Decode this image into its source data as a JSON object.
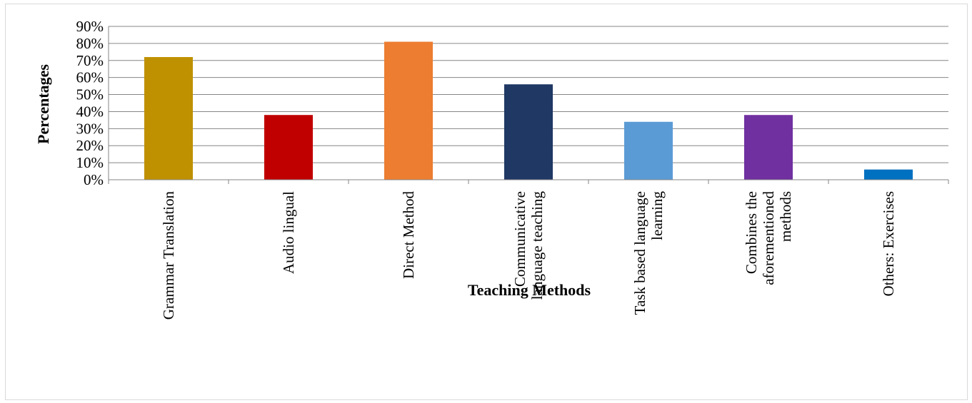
{
  "chart_data": {
    "type": "bar",
    "title": "",
    "xlabel": "Teaching Methods",
    "ylabel": "Percentages",
    "ylim": [
      0,
      90
    ],
    "ytick_step": 10,
    "ytick_labels": [
      "0%",
      "10%",
      "20%",
      "30%",
      "40%",
      "50%",
      "60%",
      "70%",
      "80%",
      "90%"
    ],
    "grid": true,
    "legend": "none",
    "categories": [
      [
        "Grammar Translation"
      ],
      [
        "Audio lingual"
      ],
      [
        "Direct Method"
      ],
      [
        "Communicative",
        "language teaching"
      ],
      [
        "Task based language",
        "learning"
      ],
      [
        "Combines the",
        "aforementioned",
        "methods"
      ],
      [
        "Others: Exercises"
      ]
    ],
    "values": [
      72,
      38,
      81,
      56,
      34,
      38,
      6
    ],
    "colors": [
      "#bf9000",
      "#c00000",
      "#ed7d31",
      "#1f3864",
      "#5b9bd5",
      "#7030a0",
      "#0070c0"
    ],
    "gridline_color": "#868686"
  }
}
